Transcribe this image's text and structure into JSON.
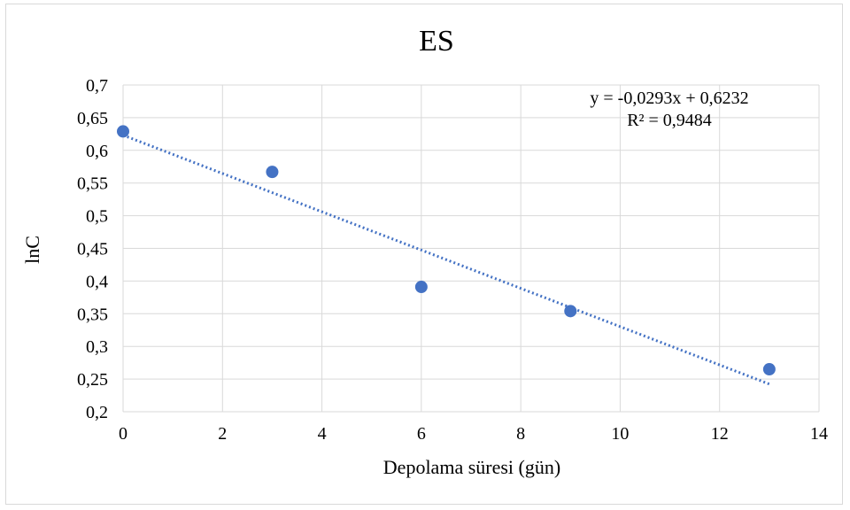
{
  "chart_data": {
    "type": "scatter",
    "title": "ES",
    "xlabel": "Depolama süresi (gün)",
    "ylabel": "lnC",
    "xlim": [
      0,
      14
    ],
    "ylim": [
      0.2,
      0.7
    ],
    "x_ticks": [
      0,
      2,
      4,
      6,
      8,
      10,
      12,
      14
    ],
    "x_tick_labels": [
      "0",
      "2",
      "4",
      "6",
      "8",
      "10",
      "12",
      "14"
    ],
    "y_ticks": [
      0.2,
      0.25,
      0.3,
      0.35,
      0.4,
      0.45,
      0.5,
      0.55,
      0.6,
      0.65,
      0.7
    ],
    "y_tick_labels": [
      "0,2",
      "0,25",
      "0,3",
      "0,35",
      "0,4",
      "0,45",
      "0,5",
      "0,55",
      "0,6",
      "0,65",
      "0,7"
    ],
    "grid": true,
    "series": [
      {
        "x": [
          0,
          3,
          6,
          9,
          13
        ],
        "y": [
          0.629,
          0.567,
          0.391,
          0.354,
          0.265
        ],
        "color": "#4472c4"
      }
    ],
    "trendline": {
      "type": "linear",
      "slope": -0.0293,
      "intercept": 0.6232,
      "x_range": [
        0,
        13
      ],
      "style": "dotted",
      "color": "#4472c4",
      "equation_label": "y = -0,0293x + 0,6232",
      "r2_label": "R² = 0,9484"
    }
  }
}
